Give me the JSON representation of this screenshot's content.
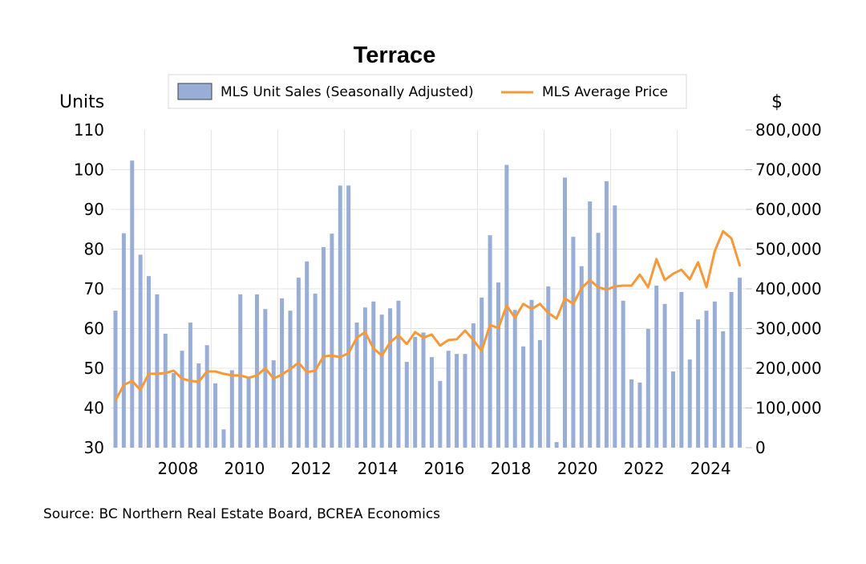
{
  "chart_data": {
    "type": "bar",
    "title": "Terrace",
    "ylabel_left": "Units",
    "ylabel_right": "$",
    "xlabel": "",
    "source": "Source:  BC Northern Real Estate Board, BCREA Economics",
    "legend": {
      "placement": "top-center",
      "entries": [
        {
          "name": "MLS Unit Sales (Seasonally Adjusted)",
          "kind": "bar",
          "color": "#98aed6"
        },
        {
          "name": "MLS Average Price",
          "kind": "line",
          "color": "#f7993a"
        }
      ]
    },
    "ylim_left": [
      30,
      110
    ],
    "yticks_left": [
      "30",
      "40",
      "50",
      "60",
      "70",
      "80",
      "90",
      "100",
      "110"
    ],
    "ylim_right": [
      0,
      800000
    ],
    "yticks_right": [
      "0",
      "100,000",
      "200,000",
      "300,000",
      "400,000",
      "500,000",
      "600,000",
      "700,000",
      "800,000"
    ],
    "xticks": [
      "2008",
      "2010",
      "2012",
      "2014",
      "2016",
      "2018",
      "2020",
      "2022",
      "2024"
    ],
    "x_start": "2007 Q1",
    "x_end": "2025 Q4",
    "frequency": "quarterly",
    "grid": true,
    "series": [
      {
        "name": "MLS Unit Sales (Seasonally Adjusted)",
        "type": "bar",
        "axis": "left",
        "color": "#98aed6",
        "values": [
          64.5,
          84,
          102.3,
          78.6,
          73.2,
          68.6,
          58.7,
          48.8,
          54.4,
          61.5,
          51.2,
          55.8,
          46.2,
          34.6,
          49.5,
          68.6,
          47.6,
          68.6,
          64.9,
          52,
          67.6,
          64.5,
          72.8,
          76.9,
          68.8,
          80.5,
          83.9,
          96,
          96,
          61.5,
          65.3,
          66.8,
          63.5,
          65.1,
          67,
          51.6,
          57.9,
          59,
          52.8,
          46.8,
          54.4,
          53.6,
          53.6,
          61.3,
          67.8,
          83.5,
          71.6,
          101.2,
          64.7,
          55.5,
          67.2,
          57.1,
          70.6,
          31.4,
          98,
          83.1,
          75.7,
          92,
          84.1,
          97.1,
          91,
          67,
          47.2,
          46.4,
          59.9,
          70.8,
          66.2,
          49.2,
          69.2,
          52.2,
          62.3,
          64.5,
          66.8,
          59.3,
          69.2,
          72.8
        ]
      },
      {
        "name": "MLS Average Price",
        "type": "line",
        "axis": "right",
        "color": "#f7993a",
        "values": [
          119000,
          158000,
          168000,
          145000,
          186000,
          186000,
          188000,
          194000,
          174000,
          168000,
          166000,
          192000,
          192000,
          186000,
          182000,
          182000,
          176000,
          182000,
          200000,
          174000,
          184000,
          198000,
          214000,
          190000,
          194000,
          230000,
          232000,
          228000,
          238000,
          277000,
          291000,
          250000,
          232000,
          265000,
          283000,
          261000,
          291000,
          277000,
          285000,
          257000,
          271000,
          273000,
          295000,
          271000,
          244000,
          309000,
          301000,
          358000,
          327000,
          362000,
          349000,
          362000,
          339000,
          325000,
          376000,
          362000,
          402000,
          422000,
          404000,
          398000,
          406000,
          408000,
          408000,
          436000,
          404000,
          475000,
          422000,
          438000,
          448000,
          424000,
          467000,
          404000,
          495000,
          545000,
          527000,
          459000
        ]
      }
    ]
  }
}
